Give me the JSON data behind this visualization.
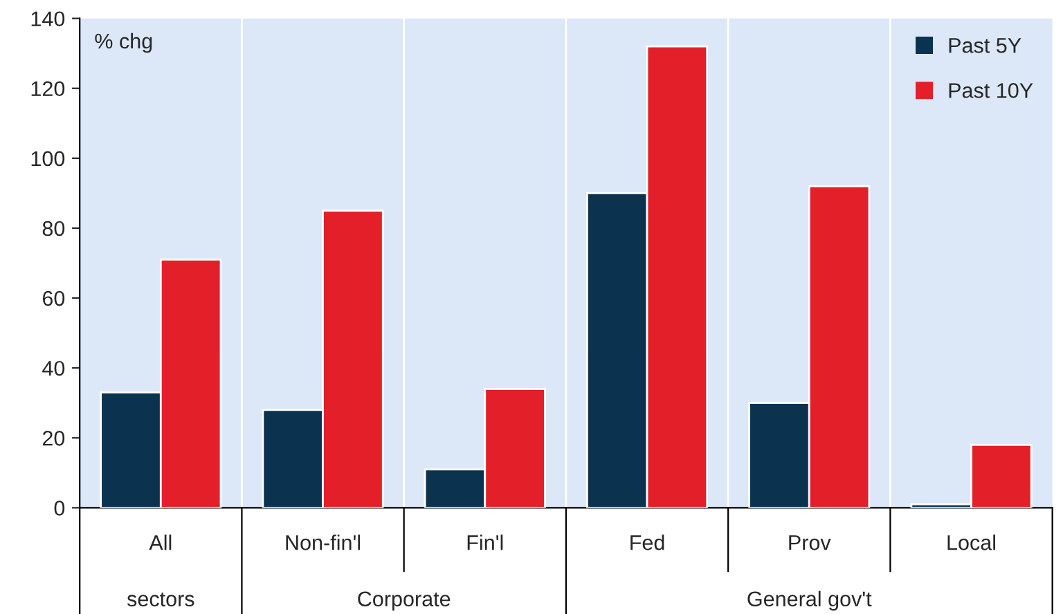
{
  "chart_data": {
    "type": "bar",
    "categories": [
      "All sectors",
      "Non-fin'l",
      "Fin'l",
      "Fed",
      "Prov",
      "Local"
    ],
    "series": [
      {
        "name": "Past 5Y",
        "color": "#0b3350",
        "values": [
          33,
          28,
          11,
          90,
          30,
          1
        ]
      },
      {
        "name": "Past 10Y",
        "color": "#e3202a",
        "values": [
          71,
          85,
          34,
          132,
          92,
          18
        ]
      }
    ],
    "ylabel": "% chg",
    "annotations": [
      "Corporate",
      "General gov't"
    ],
    "ylim": [
      0,
      140
    ],
    "yticks": [
      0,
      20,
      40,
      60,
      80,
      100,
      120,
      140
    ],
    "grid": "x",
    "legend": "top right"
  }
}
